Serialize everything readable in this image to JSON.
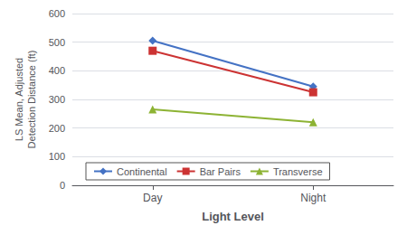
{
  "chart_data": {
    "type": "line",
    "categories": [
      "Day",
      "Night"
    ],
    "series": [
      {
        "name": "Continental",
        "color": "#4472C4",
        "marker": "diamond",
        "values": [
          505,
          345
        ]
      },
      {
        "name": "Bar Pairs",
        "color": "#CC3333",
        "marker": "square",
        "values": [
          470,
          325
        ]
      },
      {
        "name": "Transverse",
        "color": "#8DB334",
        "marker": "triangle",
        "values": [
          265,
          220
        ]
      }
    ],
    "xlabel": "Light Level",
    "ylabel": "LS Mean, Adjusted\nDetection Distance (ft)",
    "ylim": [
      0,
      600
    ],
    "yticks": [
      0,
      100,
      200,
      300,
      400,
      500,
      600
    ],
    "grid": true,
    "legend": "lower left"
  }
}
